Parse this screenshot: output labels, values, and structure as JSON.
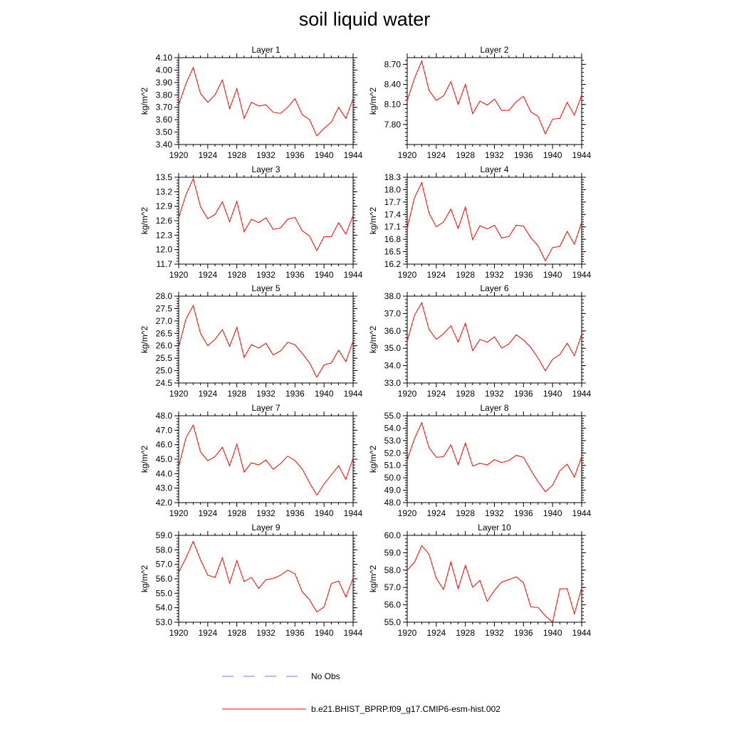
{
  "title": "soil liquid water",
  "legend": {
    "obs_label": "No Obs",
    "model_label": "b.e21.BHIST_BPRP.f09_g17.CMIP6-esm-hist.002",
    "obs_color": "#6f7fd0",
    "model_color": "#ff0000"
  },
  "chart_data": [
    {
      "type": "line",
      "title": "Layer 1",
      "ylabel": "kg/m^2",
      "xlim": [
        1920,
        1944
      ],
      "xticks": [
        1920,
        1924,
        1928,
        1932,
        1936,
        1940,
        1944
      ],
      "ylim": [
        3.4,
        4.1
      ],
      "yticks": [
        3.4,
        3.5,
        3.6,
        3.7,
        3.8,
        3.9,
        4.0,
        4.1
      ],
      "ytick_labels": [
        "3.40",
        "3.50",
        "3.60",
        "3.70",
        "3.80",
        "3.90",
        "4.00",
        "4.10"
      ],
      "x": [
        1920,
        1921,
        1922,
        1923,
        1924,
        1925,
        1926,
        1927,
        1928,
        1929,
        1930,
        1931,
        1932,
        1933,
        1934,
        1935,
        1936,
        1937,
        1938,
        1939,
        1940,
        1941,
        1942,
        1943,
        1944
      ],
      "series": [
        {
          "name": "b.e21.BHIST_BPRP.f09_g17.CMIP6-esm-hist.002",
          "values": [
            3.72,
            3.89,
            4.02,
            3.81,
            3.74,
            3.8,
            3.92,
            3.69,
            3.85,
            3.61,
            3.74,
            3.71,
            3.72,
            3.66,
            3.65,
            3.7,
            3.77,
            3.64,
            3.6,
            3.47,
            3.53,
            3.58,
            3.7,
            3.61,
            3.77
          ]
        }
      ]
    },
    {
      "type": "line",
      "title": "Layer 2",
      "ylabel": "kg/m^2",
      "xlim": [
        1920,
        1944
      ],
      "xticks": [
        1920,
        1924,
        1928,
        1932,
        1936,
        1940,
        1944
      ],
      "ylim": [
        7.5,
        8.8
      ],
      "yticks": [
        7.8,
        8.1,
        8.4,
        8.7
      ],
      "ytick_labels": [
        "7.80",
        "8.10",
        "8.40",
        "8.70"
      ],
      "x": [
        1920,
        1921,
        1922,
        1923,
        1924,
        1925,
        1926,
        1927,
        1928,
        1929,
        1930,
        1931,
        1932,
        1933,
        1934,
        1935,
        1936,
        1937,
        1938,
        1939,
        1940,
        1941,
        1942,
        1943,
        1944
      ],
      "series": [
        {
          "name": "b.e21.BHIST_BPRP.f09_g17.CMIP6-esm-hist.002",
          "values": [
            8.16,
            8.49,
            8.75,
            8.31,
            8.16,
            8.23,
            8.44,
            8.1,
            8.4,
            7.96,
            8.15,
            8.09,
            8.18,
            8.01,
            8.01,
            8.14,
            8.22,
            7.99,
            7.92,
            7.66,
            7.88,
            7.89,
            8.13,
            7.94,
            8.24
          ]
        }
      ]
    },
    {
      "type": "line",
      "title": "Layer 3",
      "ylabel": "kg/m^2",
      "xlim": [
        1920,
        1944
      ],
      "xticks": [
        1920,
        1924,
        1928,
        1932,
        1936,
        1940,
        1944
      ],
      "ylim": [
        11.7,
        13.5
      ],
      "yticks": [
        11.7,
        12.0,
        12.3,
        12.6,
        12.9,
        13.2,
        13.5
      ],
      "ytick_labels": [
        "11.7",
        "12.0",
        "12.3",
        "12.6",
        "12.9",
        "13.2",
        "13.5"
      ],
      "x": [
        1920,
        1921,
        1922,
        1923,
        1924,
        1925,
        1926,
        1927,
        1928,
        1929,
        1930,
        1931,
        1932,
        1933,
        1934,
        1935,
        1936,
        1937,
        1938,
        1939,
        1940,
        1941,
        1942,
        1943,
        1944
      ],
      "series": [
        {
          "name": "b.e21.BHIST_BPRP.f09_g17.CMIP6-esm-hist.002",
          "values": [
            12.66,
            13.14,
            13.47,
            12.89,
            12.64,
            12.73,
            12.99,
            12.58,
            13.0,
            12.37,
            12.63,
            12.56,
            12.66,
            12.42,
            12.45,
            12.63,
            12.67,
            12.39,
            12.28,
            11.98,
            12.27,
            12.27,
            12.56,
            12.32,
            12.71
          ]
        }
      ]
    },
    {
      "type": "line",
      "title": "Layer 4",
      "ylabel": "kg/m^2",
      "xlim": [
        1920,
        1944
      ],
      "xticks": [
        1920,
        1924,
        1928,
        1932,
        1936,
        1940,
        1944
      ],
      "ylim": [
        16.2,
        18.3
      ],
      "yticks": [
        16.2,
        16.5,
        16.8,
        17.1,
        17.4,
        17.7,
        18.0,
        18.3
      ],
      "ytick_labels": [
        "16.2",
        "16.5",
        "16.8",
        "17.1",
        "17.4",
        "17.7",
        "18.0",
        "18.3"
      ],
      "x": [
        1920,
        1921,
        1922,
        1923,
        1924,
        1925,
        1926,
        1927,
        1928,
        1929,
        1930,
        1931,
        1932,
        1933,
        1934,
        1935,
        1936,
        1937,
        1938,
        1939,
        1940,
        1941,
        1942,
        1943,
        1944
      ],
      "series": [
        {
          "name": "b.e21.BHIST_BPRP.f09_g17.CMIP6-esm-hist.002",
          "values": [
            17.07,
            17.81,
            18.17,
            17.43,
            17.1,
            17.22,
            17.53,
            17.06,
            17.58,
            16.79,
            17.13,
            17.05,
            17.14,
            16.83,
            16.87,
            17.14,
            17.12,
            16.84,
            16.64,
            16.28,
            16.6,
            16.63,
            16.99,
            16.68,
            17.21
          ]
        }
      ]
    },
    {
      "type": "line",
      "title": "Layer 5",
      "ylabel": "kg/m^2",
      "xlim": [
        1920,
        1944
      ],
      "xticks": [
        1920,
        1924,
        1928,
        1932,
        1936,
        1940,
        1944
      ],
      "ylim": [
        24.5,
        28.0
      ],
      "yticks": [
        24.5,
        25.0,
        25.5,
        26.0,
        26.5,
        27.0,
        27.5,
        28.0
      ],
      "ytick_labels": [
        "24.5",
        "25.0",
        "25.5",
        "26.0",
        "26.5",
        "27.0",
        "27.5",
        "28.0"
      ],
      "x": [
        1920,
        1921,
        1922,
        1923,
        1924,
        1925,
        1926,
        1927,
        1928,
        1929,
        1930,
        1931,
        1932,
        1933,
        1934,
        1935,
        1936,
        1937,
        1938,
        1939,
        1940,
        1941,
        1942,
        1943,
        1944
      ],
      "series": [
        {
          "name": "b.e21.BHIST_BPRP.f09_g17.CMIP6-esm-hist.002",
          "values": [
            25.95,
            27.08,
            27.62,
            26.5,
            26.0,
            26.26,
            26.65,
            25.98,
            26.74,
            25.53,
            26.05,
            25.91,
            26.1,
            25.63,
            25.79,
            26.14,
            26.04,
            25.69,
            25.31,
            24.73,
            25.23,
            25.31,
            25.82,
            25.36,
            26.19
          ]
        }
      ]
    },
    {
      "type": "line",
      "title": "Layer 6",
      "ylabel": "kg/m^2",
      "xlim": [
        1920,
        1944
      ],
      "xticks": [
        1920,
        1924,
        1928,
        1932,
        1936,
        1940,
        1944
      ],
      "ylim": [
        33.0,
        38.0
      ],
      "yticks": [
        33.0,
        34.0,
        35.0,
        36.0,
        37.0,
        38.0
      ],
      "ytick_labels": [
        "33.0",
        "34.0",
        "35.0",
        "36.0",
        "37.0",
        "38.0"
      ],
      "x": [
        1920,
        1921,
        1922,
        1923,
        1924,
        1925,
        1926,
        1927,
        1928,
        1929,
        1930,
        1931,
        1932,
        1933,
        1934,
        1935,
        1936,
        1937,
        1938,
        1939,
        1940,
        1941,
        1942,
        1943,
        1944
      ],
      "series": [
        {
          "name": "b.e21.BHIST_BPRP.f09_g17.CMIP6-esm-hist.002",
          "values": [
            35.4,
            36.9,
            37.62,
            36.08,
            35.52,
            35.83,
            36.3,
            35.36,
            36.44,
            34.86,
            35.51,
            35.35,
            35.66,
            35.01,
            35.25,
            35.78,
            35.48,
            35.05,
            34.43,
            33.7,
            34.37,
            34.64,
            35.29,
            34.57,
            35.81
          ]
        }
      ]
    },
    {
      "type": "line",
      "title": "Layer 7",
      "ylabel": "kg/m^2",
      "xlim": [
        1920,
        1944
      ],
      "xticks": [
        1920,
        1924,
        1928,
        1932,
        1936,
        1940,
        1944
      ],
      "ylim": [
        42.0,
        48.0
      ],
      "yticks": [
        42.0,
        43.0,
        44.0,
        45.0,
        46.0,
        47.0,
        48.0
      ],
      "ytick_labels": [
        "42.0",
        "43.0",
        "44.0",
        "45.0",
        "46.0",
        "47.0",
        "48.0"
      ],
      "x": [
        1920,
        1921,
        1922,
        1923,
        1924,
        1925,
        1926,
        1927,
        1928,
        1929,
        1930,
        1931,
        1932,
        1933,
        1934,
        1935,
        1936,
        1937,
        1938,
        1939,
        1940,
        1941,
        1942,
        1943,
        1944
      ],
      "series": [
        {
          "name": "b.e21.BHIST_BPRP.f09_g17.CMIP6-esm-hist.002",
          "values": [
            44.49,
            46.48,
            47.35,
            45.5,
            44.89,
            45.18,
            45.82,
            44.55,
            46.04,
            44.11,
            44.75,
            44.6,
            44.94,
            44.3,
            44.69,
            45.21,
            44.9,
            44.32,
            43.37,
            42.51,
            43.28,
            43.92,
            44.55,
            43.6,
            45.08
          ]
        }
      ]
    },
    {
      "type": "line",
      "title": "Layer 8",
      "ylabel": "kg/m^2",
      "xlim": [
        1920,
        1944
      ],
      "xticks": [
        1920,
        1924,
        1928,
        1932,
        1936,
        1940,
        1944
      ],
      "ylim": [
        48.0,
        55.0
      ],
      "yticks": [
        48.0,
        49.0,
        50.0,
        51.0,
        52.0,
        53.0,
        54.0,
        55.0
      ],
      "ytick_labels": [
        "48.0",
        "49.0",
        "50.0",
        "51.0",
        "52.0",
        "53.0",
        "54.0",
        "55.0"
      ],
      "x": [
        1920,
        1921,
        1922,
        1923,
        1924,
        1925,
        1926,
        1927,
        1928,
        1929,
        1930,
        1931,
        1932,
        1933,
        1934,
        1935,
        1936,
        1937,
        1938,
        1939,
        1940,
        1941,
        1942,
        1943,
        1944
      ],
      "series": [
        {
          "name": "b.e21.BHIST_BPRP.f09_g17.CMIP6-esm-hist.002",
          "values": [
            51.46,
            53.15,
            54.44,
            52.43,
            51.65,
            51.7,
            52.66,
            51.04,
            52.81,
            50.95,
            51.18,
            51.03,
            51.46,
            51.23,
            51.4,
            51.81,
            51.65,
            50.62,
            49.67,
            48.88,
            49.4,
            50.58,
            51.1,
            50.05,
            51.7
          ]
        }
      ]
    },
    {
      "type": "line",
      "title": "Layer 9",
      "ylabel": "kg/m^2",
      "xlim": [
        1920,
        1944
      ],
      "xticks": [
        1920,
        1924,
        1928,
        1932,
        1936,
        1940,
        1944
      ],
      "ylim": [
        53.0,
        59.0
      ],
      "yticks": [
        53.0,
        54.0,
        55.0,
        56.0,
        57.0,
        58.0,
        59.0
      ],
      "ytick_labels": [
        "53.0",
        "54.0",
        "55.0",
        "56.0",
        "57.0",
        "58.0",
        "59.0"
      ],
      "x": [
        1920,
        1921,
        1922,
        1923,
        1924,
        1925,
        1926,
        1927,
        1928,
        1929,
        1930,
        1931,
        1932,
        1933,
        1934,
        1935,
        1936,
        1937,
        1938,
        1939,
        1940,
        1941,
        1942,
        1943,
        1944
      ],
      "series": [
        {
          "name": "b.e21.BHIST_BPRP.f09_g17.CMIP6-esm-hist.002",
          "values": [
            56.46,
            57.44,
            58.58,
            57.31,
            56.25,
            56.09,
            57.45,
            55.7,
            57.25,
            55.81,
            56.1,
            55.33,
            55.94,
            56.02,
            56.24,
            56.6,
            56.34,
            55.1,
            54.55,
            53.71,
            54.06,
            55.67,
            55.85,
            54.74,
            56.05
          ]
        }
      ]
    },
    {
      "type": "line",
      "title": "Layer 10",
      "ylabel": "kg/m^2",
      "xlim": [
        1920,
        1944
      ],
      "xticks": [
        1920,
        1924,
        1928,
        1932,
        1936,
        1940,
        1944
      ],
      "ylim": [
        55.0,
        60.0
      ],
      "yticks": [
        55.0,
        56.0,
        57.0,
        58.0,
        59.0,
        60.0
      ],
      "ytick_labels": [
        "55.0",
        "56.0",
        "57.0",
        "58.0",
        "59.0",
        "60.0"
      ],
      "x": [
        1920,
        1921,
        1922,
        1923,
        1924,
        1925,
        1926,
        1927,
        1928,
        1929,
        1930,
        1931,
        1932,
        1933,
        1934,
        1935,
        1936,
        1937,
        1938,
        1939,
        1940,
        1941,
        1942,
        1943,
        1944
      ],
      "series": [
        {
          "name": "b.e21.BHIST_BPRP.f09_g17.CMIP6-esm-hist.002",
          "values": [
            58.0,
            58.45,
            59.41,
            58.91,
            57.53,
            56.88,
            58.48,
            56.92,
            58.27,
            57.01,
            57.4,
            56.21,
            56.83,
            57.31,
            57.46,
            57.61,
            57.27,
            55.88,
            55.85,
            55.37,
            55.0,
            56.92,
            56.93,
            55.48,
            56.97
          ]
        }
      ]
    }
  ]
}
